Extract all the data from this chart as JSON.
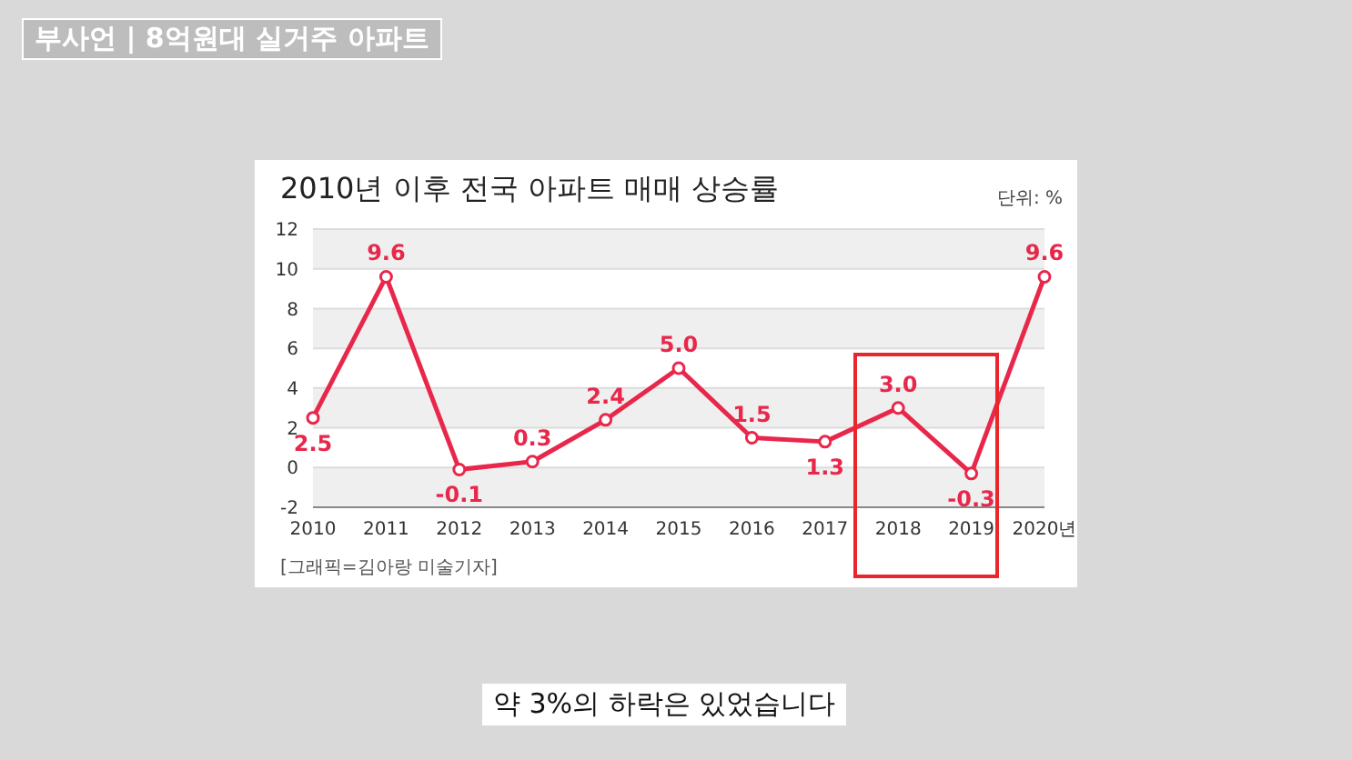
{
  "chart_data": {
    "type": "line",
    "title": "2010년 이후 전국 아파트 매매 상승률",
    "ylabel": "단위: %",
    "annotations": [
      "부사언 | 8억원대 실거주 아파트",
      "[그래픽=김아랑 미술기자]",
      "약 3%의 하락은 있었습니다"
    ],
    "categories": [
      "2010",
      "2011",
      "2012",
      "2013",
      "2014",
      "2015",
      "2016",
      "2017",
      "2018",
      "2019",
      "2020년"
    ],
    "series": [
      {
        "color": "#e8274b",
        "values": [
          2.5,
          9.6,
          -0.1,
          0.3,
          2.4,
          5.0,
          1.5,
          1.3,
          3.0,
          -0.3,
          9.6
        ],
        "value_labels": [
          "2.5",
          "9.6",
          "-0.1",
          "0.3",
          "2.4",
          "5.0",
          "1.5",
          "1.3",
          "3.0",
          "-0.3",
          "9.6"
        ]
      }
    ],
    "ylim": [
      -2,
      12
    ],
    "yticks": [
      -2,
      0,
      2,
      4,
      6,
      8,
      10,
      12
    ],
    "grid": "y",
    "marker": "circle",
    "line_style": "solid"
  }
}
